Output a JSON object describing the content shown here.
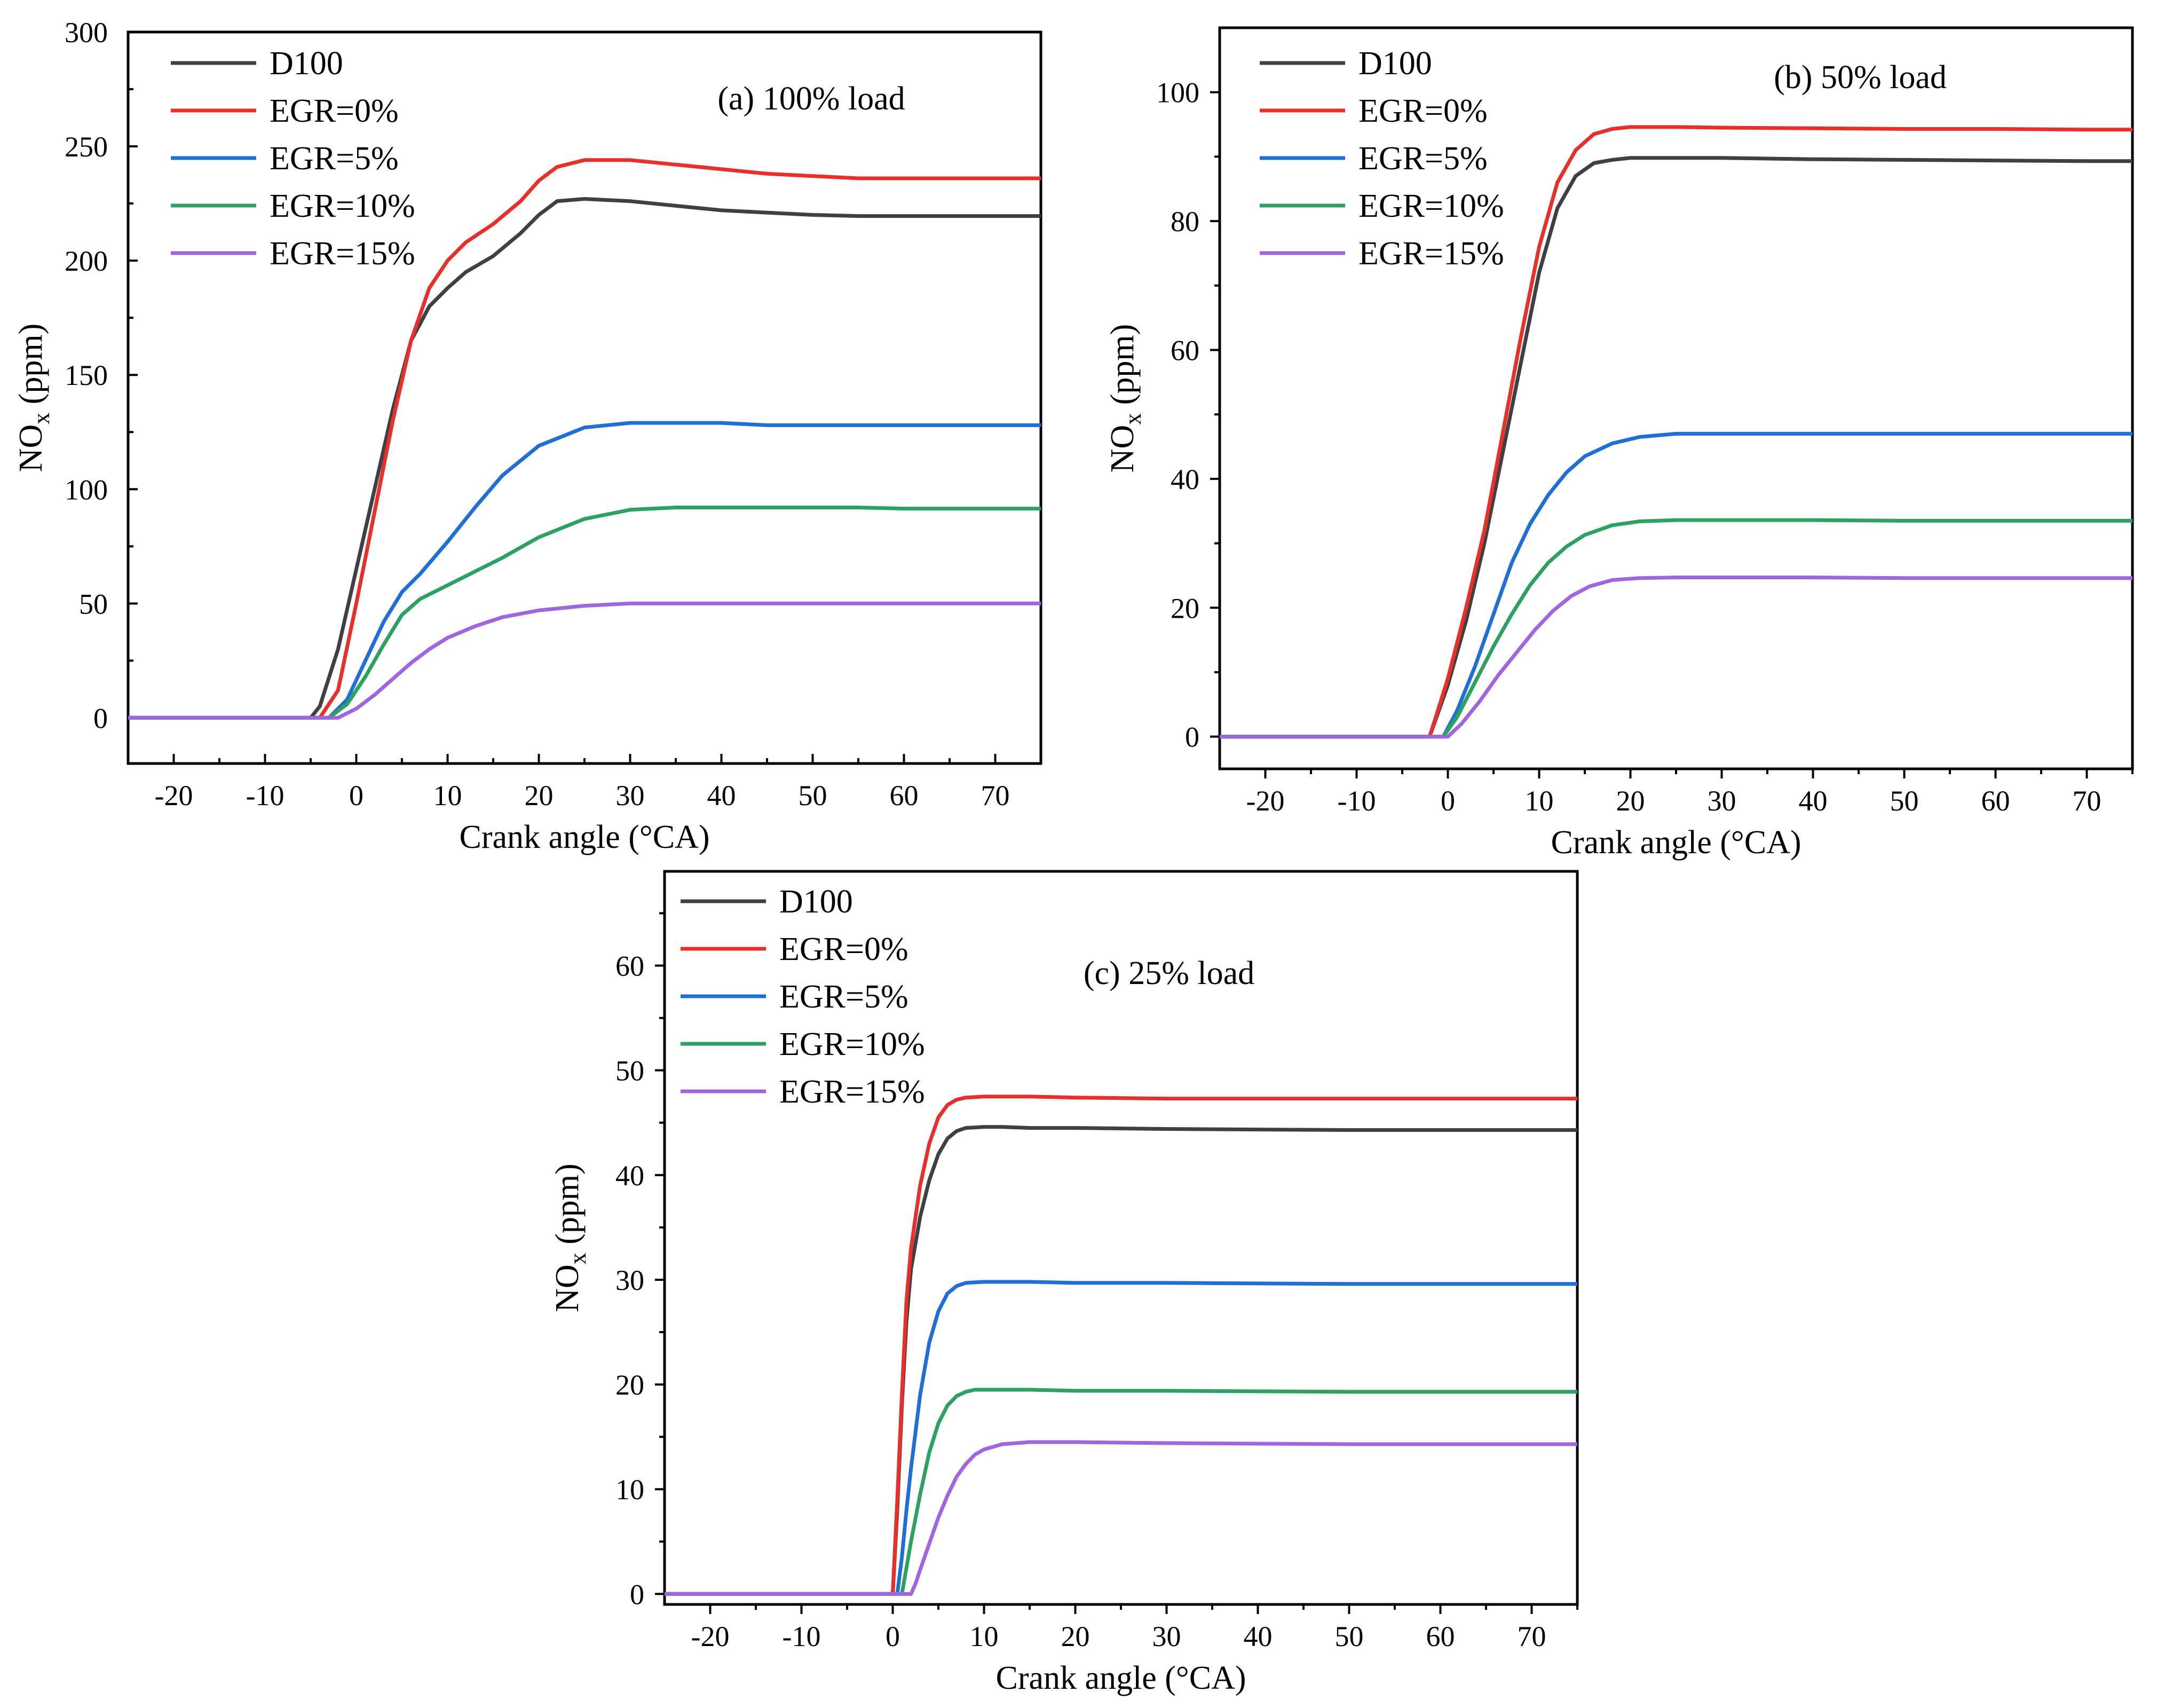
{
  "chart_data": [
    {
      "type": "line",
      "title": "(a) 100% load",
      "xlabel": "Crank angle (°CA)",
      "ylabel": "NOx (ppm)",
      "ylabel_main": "NO",
      "ylabel_sub": "x",
      "ylabel_unit": " (ppm)",
      "xlim": [
        -25,
        75
      ],
      "ylim": [
        -20,
        300
      ],
      "xticks": [
        -20,
        -10,
        0,
        10,
        20,
        30,
        40,
        50,
        60,
        70
      ],
      "xtick_labels": [
        "-20",
        "-10",
        "0",
        "10",
        "20",
        "30",
        "40",
        "50",
        "60",
        "70"
      ],
      "yticks": [
        0,
        50,
        100,
        150,
        200,
        250,
        300
      ],
      "ytick_labels": [
        "0",
        "50",
        "100",
        "150",
        "200",
        "250",
        "300"
      ],
      "legend_position": "top-left",
      "series": [
        {
          "name": "D100",
          "color": "#404040",
          "x": [
            -25,
            -5,
            -4,
            -2,
            0,
            2,
            4,
            6,
            8,
            10,
            12,
            15,
            18,
            20,
            22,
            25,
            30,
            35,
            40,
            45,
            50,
            55,
            60,
            65,
            70,
            75
          ],
          "y": [
            0,
            0,
            5,
            30,
            65,
            100,
            135,
            165,
            180,
            188,
            195,
            202,
            212,
            220,
            226,
            227,
            226,
            224,
            222,
            221,
            220,
            219.5,
            219.5,
            219.5,
            219.5,
            219.5
          ]
        },
        {
          "name": "EGR=0%",
          "color": "#e8302a",
          "x": [
            -25,
            -4,
            -2,
            0,
            2,
            4,
            6,
            8,
            10,
            12,
            15,
            18,
            20,
            22,
            25,
            30,
            35,
            40,
            45,
            50,
            55,
            60,
            65,
            70,
            75
          ],
          "y": [
            0,
            0,
            12,
            50,
            90,
            130,
            165,
            188,
            200,
            208,
            216,
            226,
            235,
            241,
            244,
            244,
            242,
            240,
            238,
            237,
            236,
            236,
            236,
            236,
            236
          ]
        },
        {
          "name": "EGR=5%",
          "color": "#1f6fd6",
          "x": [
            -25,
            -3,
            -1,
            1,
            3,
            5,
            7,
            10,
            13,
            16,
            20,
            25,
            30,
            35,
            40,
            45,
            50,
            55,
            60,
            65,
            70,
            75
          ],
          "y": [
            0,
            0,
            8,
            25,
            42,
            55,
            63,
            77,
            92,
            106,
            119,
            127,
            129,
            129,
            129,
            128,
            128,
            128,
            128,
            128,
            128,
            128
          ]
        },
        {
          "name": "EGR=10%",
          "color": "#2ea062",
          "x": [
            -25,
            -3,
            -1,
            1,
            3,
            5,
            7,
            10,
            13,
            16,
            20,
            25,
            30,
            35,
            40,
            45,
            50,
            55,
            60,
            65,
            70,
            75
          ],
          "y": [
            0,
            0,
            6,
            18,
            32,
            45,
            52,
            58,
            64,
            70,
            79,
            87,
            91,
            92,
            92,
            92,
            92,
            92,
            91.5,
            91.5,
            91.5,
            91.5
          ]
        },
        {
          "name": "EGR=15%",
          "color": "#a066e0",
          "x": [
            -25,
            -2,
            0,
            2,
            4,
            6,
            8,
            10,
            13,
            16,
            20,
            25,
            30,
            35,
            40,
            45,
            50,
            55,
            60,
            65,
            70,
            75
          ],
          "y": [
            0,
            0,
            4,
            10,
            17,
            24,
            30,
            35,
            40,
            44,
            47,
            49,
            50,
            50,
            50,
            50,
            50,
            50,
            50,
            50,
            50,
            50
          ]
        }
      ]
    },
    {
      "type": "line",
      "title": "(b) 50% load",
      "xlabel": "Crank angle (°CA)",
      "ylabel": "NOx (ppm)",
      "ylabel_main": "NO",
      "ylabel_sub": "x",
      "ylabel_unit": " (ppm)",
      "xlim": [
        -25,
        75
      ],
      "ylim": [
        -5,
        110
      ],
      "xticks": [
        -20,
        -10,
        0,
        10,
        20,
        30,
        40,
        50,
        60,
        70
      ],
      "xtick_labels": [
        "-20",
        "-10",
        "0",
        "10",
        "20",
        "30",
        "40",
        "50",
        "60",
        "70"
      ],
      "yticks": [
        0,
        20,
        40,
        60,
        80,
        100
      ],
      "ytick_labels": [
        "0",
        "20",
        "40",
        "60",
        "80",
        "100"
      ],
      "legend_position": "top-left",
      "series": [
        {
          "name": "D100",
          "color": "#404040",
          "x": [
            -25,
            -2,
            0,
            2,
            4,
            6,
            8,
            10,
            12,
            14,
            16,
            18,
            20,
            25,
            30,
            40,
            50,
            60,
            70,
            75
          ],
          "y": [
            0,
            0,
            8,
            18,
            30,
            44,
            58,
            72,
            82,
            87,
            89,
            89.5,
            89.8,
            89.8,
            89.8,
            89.6,
            89.5,
            89.4,
            89.3,
            89.3
          ]
        },
        {
          "name": "EGR=0%",
          "color": "#e8302a",
          "x": [
            -25,
            -2,
            0,
            2,
            4,
            6,
            8,
            10,
            12,
            14,
            16,
            18,
            20,
            25,
            30,
            40,
            50,
            60,
            70,
            75
          ],
          "y": [
            0,
            0,
            9,
            20,
            32,
            47,
            62,
            76,
            86,
            91,
            93.5,
            94.3,
            94.6,
            94.6,
            94.5,
            94.4,
            94.3,
            94.3,
            94.2,
            94.2
          ]
        },
        {
          "name": "EGR=5%",
          "color": "#1f6fd6",
          "x": [
            -25,
            -0.5,
            1,
            3,
            5,
            7,
            9,
            11,
            13,
            15,
            18,
            21,
            25,
            30,
            40,
            50,
            60,
            70,
            75
          ],
          "y": [
            0,
            0,
            4,
            11,
            19,
            27,
            33,
            37.5,
            41,
            43.5,
            45.5,
            46.5,
            47,
            47,
            47,
            47,
            47,
            47,
            47
          ]
        },
        {
          "name": "EGR=10%",
          "color": "#2ea062",
          "x": [
            -25,
            -0.5,
            1,
            3,
            5,
            7,
            9,
            11,
            13,
            15,
            18,
            21,
            25,
            30,
            40,
            50,
            60,
            70,
            75
          ],
          "y": [
            0,
            0,
            3,
            8.5,
            14,
            19,
            23.5,
            27,
            29.5,
            31.3,
            32.8,
            33.4,
            33.6,
            33.6,
            33.6,
            33.5,
            33.5,
            33.5,
            33.5
          ]
        },
        {
          "name": "EGR=15%",
          "color": "#a066e0",
          "x": [
            -25,
            0,
            1.5,
            3.5,
            5.5,
            7.5,
            9.5,
            11.5,
            13.5,
            15.5,
            18,
            21,
            25,
            30,
            40,
            50,
            60,
            70,
            75
          ],
          "y": [
            0,
            0,
            2,
            5.5,
            9.5,
            13,
            16.5,
            19.5,
            21.8,
            23.3,
            24.3,
            24.6,
            24.7,
            24.7,
            24.7,
            24.6,
            24.6,
            24.6,
            24.6
          ]
        }
      ]
    },
    {
      "type": "line",
      "title": "(c) 25% load",
      "xlabel": "Crank angle (°CA)",
      "ylabel": "NOx (ppm)",
      "ylabel_main": "NO",
      "ylabel_sub": "x",
      "ylabel_unit": " (ppm)",
      "xlim": [
        -25,
        75
      ],
      "ylim": [
        -1,
        69
      ],
      "xticks": [
        -20,
        -10,
        0,
        10,
        20,
        30,
        40,
        50,
        60,
        70
      ],
      "xtick_labels": [
        "-20",
        "-10",
        "0",
        "10",
        "20",
        "30",
        "40",
        "50",
        "60",
        "70"
      ],
      "yticks": [
        0,
        10,
        20,
        30,
        40,
        50,
        60
      ],
      "ytick_labels": [
        "0",
        "10",
        "20",
        "30",
        "40",
        "50",
        "60"
      ],
      "legend_position": "top-left",
      "series": [
        {
          "name": "D100",
          "color": "#404040",
          "x": [
            -25,
            0,
            0.5,
            1,
            1.5,
            2,
            3,
            4,
            5,
            6,
            7,
            8,
            10,
            12,
            15,
            20,
            30,
            50,
            75
          ],
          "y": [
            0,
            0,
            8,
            18,
            26,
            31,
            36,
            39.5,
            42,
            43.5,
            44.2,
            44.5,
            44.6,
            44.6,
            44.5,
            44.5,
            44.4,
            44.3,
            44.3
          ]
        },
        {
          "name": "EGR=0%",
          "color": "#e8302a",
          "x": [
            -25,
            0,
            0.5,
            1,
            1.5,
            2,
            3,
            4,
            5,
            6,
            7,
            8,
            10,
            12,
            15,
            20,
            30,
            50,
            75
          ],
          "y": [
            0,
            0,
            9,
            19,
            28,
            33,
            39,
            43,
            45.5,
            46.7,
            47.2,
            47.4,
            47.5,
            47.5,
            47.5,
            47.4,
            47.3,
            47.3,
            47.3
          ]
        },
        {
          "name": "EGR=5%",
          "color": "#1f6fd6",
          "x": [
            -25,
            0.5,
            1,
            1.5,
            2,
            3,
            4,
            5,
            6,
            7,
            8,
            10,
            12,
            15,
            20,
            30,
            50,
            75
          ],
          "y": [
            0,
            0,
            3.5,
            8,
            12,
            19,
            24,
            27,
            28.7,
            29.4,
            29.7,
            29.8,
            29.8,
            29.8,
            29.7,
            29.7,
            29.6,
            29.6
          ]
        },
        {
          "name": "EGR=10%",
          "color": "#2ea062",
          "x": [
            -25,
            1,
            1.5,
            2,
            3,
            4,
            5,
            6,
            7,
            8,
            9,
            10,
            12,
            15,
            20,
            30,
            50,
            75
          ],
          "y": [
            0,
            0,
            2.5,
            5,
            9.5,
            13.5,
            16.3,
            18,
            18.9,
            19.3,
            19.5,
            19.5,
            19.5,
            19.5,
            19.4,
            19.4,
            19.3,
            19.3
          ]
        },
        {
          "name": "EGR=15%",
          "color": "#a066e0",
          "x": [
            -25,
            2,
            2.5,
            3,
            4,
            5,
            6,
            7,
            8,
            9,
            10,
            12,
            15,
            20,
            30,
            50,
            75
          ],
          "y": [
            0,
            0,
            1,
            2.3,
            4.8,
            7.3,
            9.4,
            11.2,
            12.4,
            13.3,
            13.8,
            14.3,
            14.5,
            14.5,
            14.4,
            14.3,
            14.3
          ]
        }
      ]
    }
  ]
}
